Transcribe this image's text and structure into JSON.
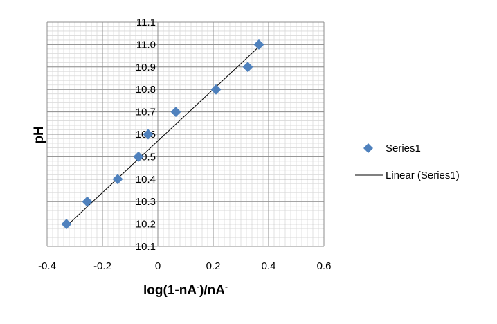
{
  "chart_data": {
    "type": "scatter",
    "xlabel": "log(1-nA-)/nA-",
    "xlabel_main": "log(1-nA",
    "xlabel_sup1": "-",
    "xlabel_mid": ")/nA",
    "xlabel_sup2": "-",
    "ylabel": "pH",
    "xlim": [
      -0.4,
      0.6
    ],
    "ylim": [
      10.1,
      11.1
    ],
    "x_ticks": [
      -0.4,
      -0.2,
      0,
      0.2,
      0.4,
      0.6
    ],
    "x_tick_labels": [
      "-0.4",
      "-0.2",
      "0",
      "0.2",
      "0.4",
      "0.6"
    ],
    "y_ticks": [
      10.1,
      10.2,
      10.3,
      10.4,
      10.5,
      10.6,
      10.7,
      10.8,
      10.9,
      11.0,
      11.1
    ],
    "y_tick_labels": [
      "10.1",
      "10.2",
      "10.3",
      "10.4",
      "10.5",
      "10.6",
      "10.7",
      "10.8",
      "10.9",
      "11.0",
      "11.1"
    ],
    "grid": true,
    "legend_position": "right",
    "series": [
      {
        "name": "Series1",
        "marker": "diamond",
        "color": "#4F81BD",
        "x": [
          -0.33,
          -0.255,
          -0.145,
          -0.07,
          -0.035,
          0.065,
          0.21,
          0.325,
          0.365
        ],
        "y": [
          10.2,
          10.3,
          10.4,
          10.5,
          10.6,
          10.7,
          10.8,
          10.9,
          11.0
        ]
      }
    ],
    "trendline": {
      "name": "Linear (Series1)",
      "type": "linear",
      "color": "#000000",
      "x": [
        -0.335,
        0.365
      ],
      "y": [
        10.185,
        10.99
      ]
    }
  }
}
